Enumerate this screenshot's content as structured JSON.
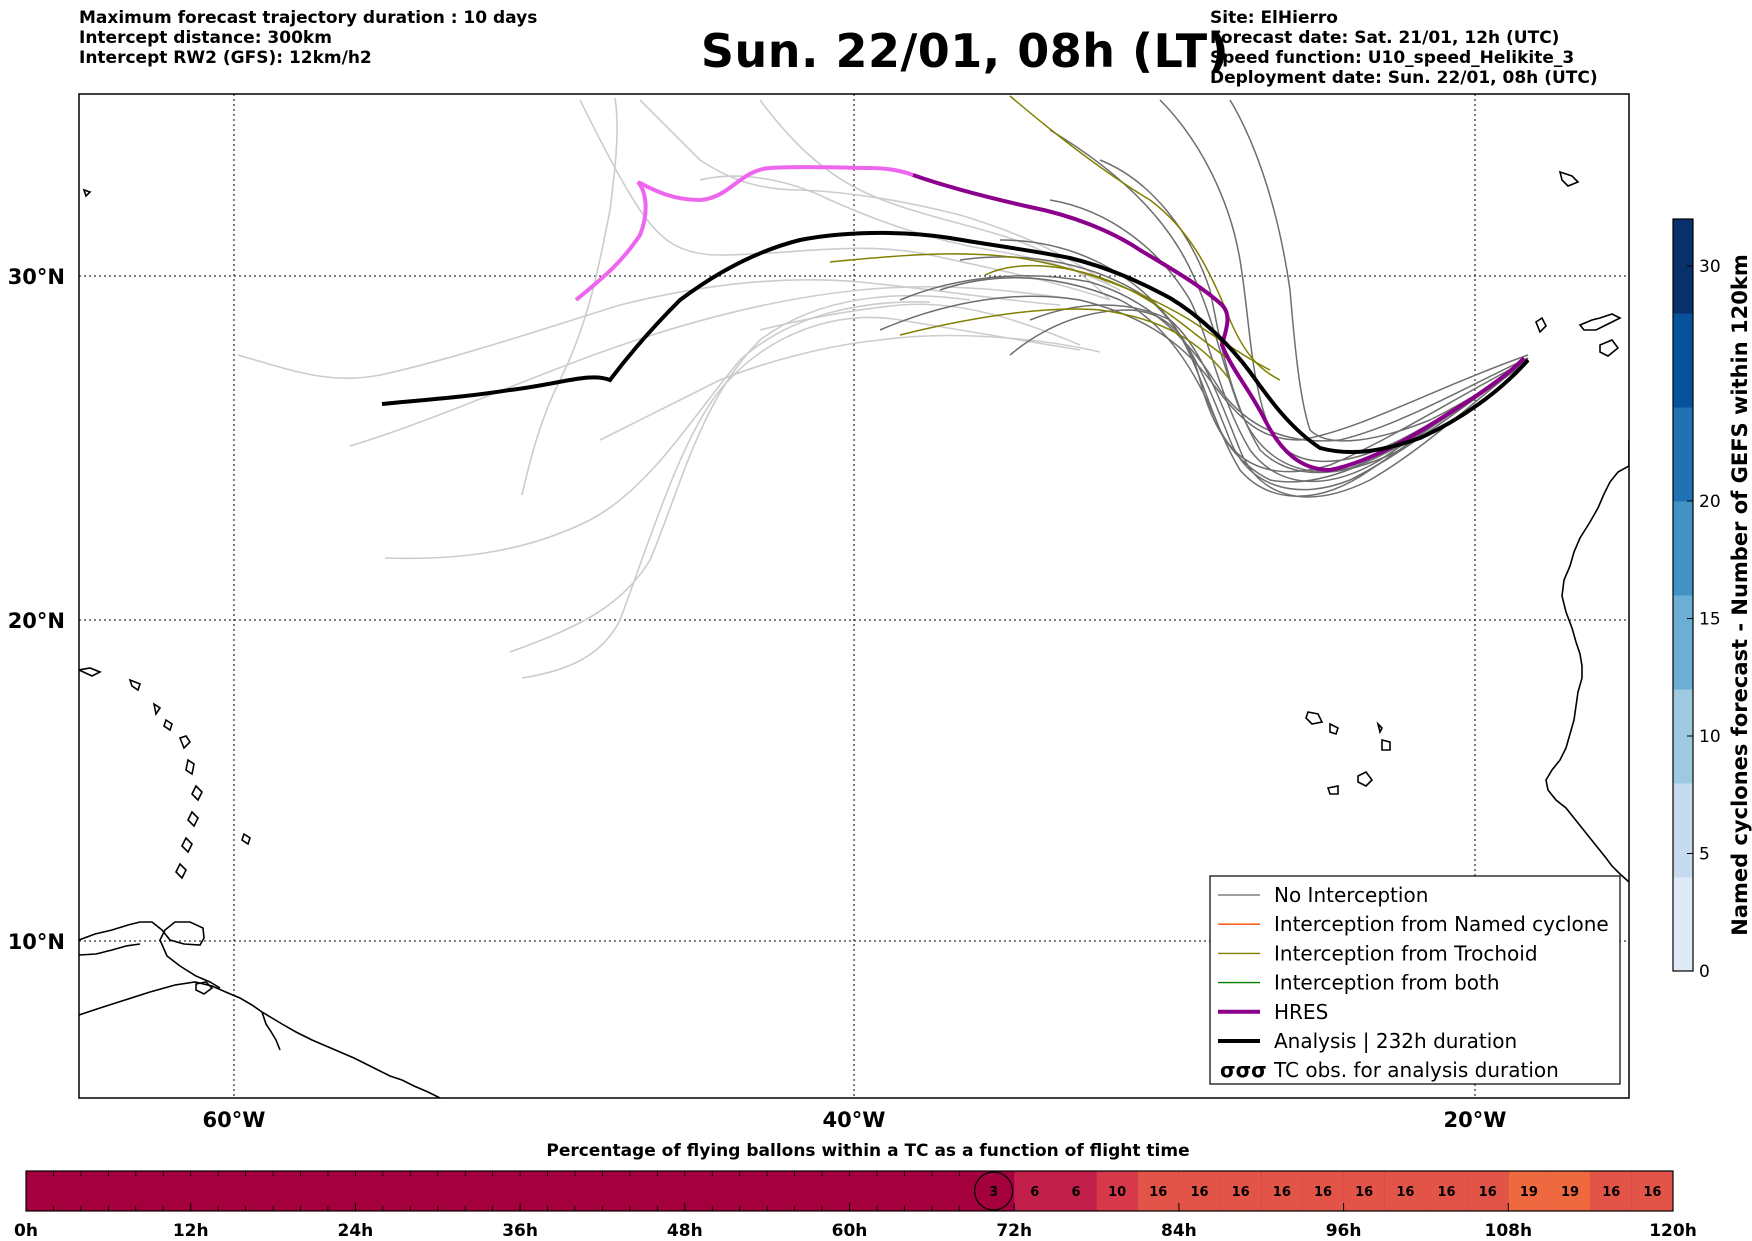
{
  "header": {
    "left_lines": [
      "Maximum forecast trajectory duration : 10 days",
      "Intercept distance: 300km",
      "Intercept RW2 (GFS):  12km/h2"
    ],
    "title": "Sun. 22/01, 08h (LT)",
    "right_lines": [
      "Site: ElHierro",
      "Forecast date: Sat. 21/01, 12h (UTC)",
      "Speed function: U10_speed_Helikite_3",
      "Deployment date: Sun. 22/01, 08h (UTC)"
    ]
  },
  "map": {
    "lon_range": [
      -65,
      -15
    ],
    "lat_range": [
      5,
      35
    ],
    "lon_labels": [
      "60°W",
      "40°W",
      "20°W"
    ],
    "lat_labels": [
      "30°N",
      "20°N",
      "10°N"
    ],
    "colors": {
      "ensemble_light": "#cccccc",
      "ensemble_dark": "#6e6e6e",
      "trochoid": "#808000",
      "hres": "#8b008b",
      "hres_early": "#ee66ee",
      "analysis": "#000000"
    }
  },
  "legend": {
    "items": [
      {
        "label": "No Interception",
        "color": "#808080",
        "style": "thin"
      },
      {
        "label": "Interception from Named cyclone",
        "color": "#ff4500",
        "style": "thin"
      },
      {
        "label": "Interception from Trochoid",
        "color": "#808000",
        "style": "thin"
      },
      {
        "label": "Interception from both",
        "color": "#008000",
        "style": "thin"
      },
      {
        "label": "HRES",
        "color": "#8b008b",
        "style": "thick"
      },
      {
        "label": "Analysis | 232h duration",
        "color": "#000000",
        "style": "thick"
      },
      {
        "label": "TC obs. for analysis duration",
        "color": "#000000",
        "style": "symbol",
        "symbol": "σσσ"
      }
    ]
  },
  "colorbar": {
    "label": "Named cyclones forecast - Number of GEFS within 120km",
    "ticks": [
      "0",
      "5",
      "10",
      "15",
      "20",
      "30"
    ],
    "colors": [
      "#deebf7",
      "#c6dbef",
      "#9ecae1",
      "#6baed6",
      "#4292c6",
      "#2171b5",
      "#08519c",
      "#08306b"
    ]
  },
  "timebar": {
    "title": "Percentage of flying ballons within a TC as a function of flight time",
    "ticks": [
      "0h",
      "12h",
      "24h",
      "36h",
      "48h",
      "60h",
      "72h",
      "84h",
      "96h",
      "108h",
      "120h"
    ],
    "cells": [
      {
        "value": "3",
        "color": "#a3003d",
        "circled": true
      },
      {
        "value": "6",
        "color": "#c2204a"
      },
      {
        "value": "6",
        "color": "#c2204a"
      },
      {
        "value": "10",
        "color": "#d63a4a"
      },
      {
        "value": "16",
        "color": "#e35448"
      },
      {
        "value": "16",
        "color": "#e35448"
      },
      {
        "value": "16",
        "color": "#e35448"
      },
      {
        "value": "16",
        "color": "#e35448"
      },
      {
        "value": "16",
        "color": "#e35448"
      },
      {
        "value": "16",
        "color": "#e35448"
      },
      {
        "value": "16",
        "color": "#e35448"
      },
      {
        "value": "16",
        "color": "#e35448"
      },
      {
        "value": "16",
        "color": "#e35448"
      },
      {
        "value": "19",
        "color": "#ee6840"
      },
      {
        "value": "19",
        "color": "#ee6840"
      },
      {
        "value": "16",
        "color": "#e35448"
      },
      {
        "value": "16",
        "color": "#e35448"
      }
    ],
    "base_color": "#a3003d"
  }
}
